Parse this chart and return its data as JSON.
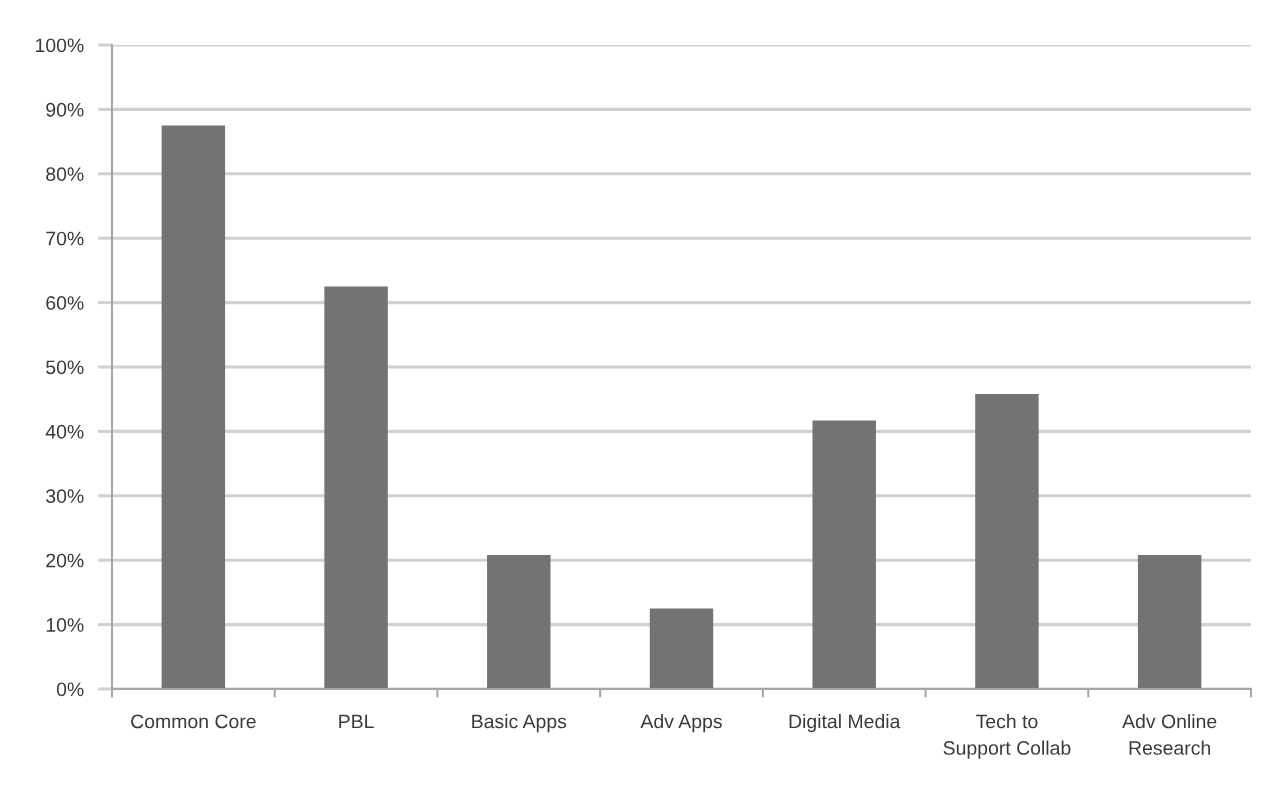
{
  "chart_data": {
    "type": "bar",
    "categories": [
      "Common Core",
      "PBL",
      "Basic Apps",
      "Adv Apps",
      "Digital Media",
      "Tech to\nSupport Collab",
      "Adv Online\nResearch"
    ],
    "values": [
      87.5,
      62.5,
      20.8,
      12.5,
      41.7,
      45.8,
      20.8
    ],
    "color": "#737373",
    "ylim": [
      0,
      100
    ],
    "yticks": [
      {
        "value": 0,
        "label": "0%"
      },
      {
        "value": 10,
        "label": "10%"
      },
      {
        "value": 20,
        "label": "20%"
      },
      {
        "value": 30,
        "label": "30%"
      },
      {
        "value": 40,
        "label": "40%"
      },
      {
        "value": 50,
        "label": "50%"
      },
      {
        "value": 60,
        "label": "60%"
      },
      {
        "value": 70,
        "label": "70%"
      },
      {
        "value": 80,
        "label": "80%"
      },
      {
        "value": 90,
        "label": "90%"
      },
      {
        "value": 100,
        "label": "100%"
      }
    ],
    "grid": "y"
  }
}
